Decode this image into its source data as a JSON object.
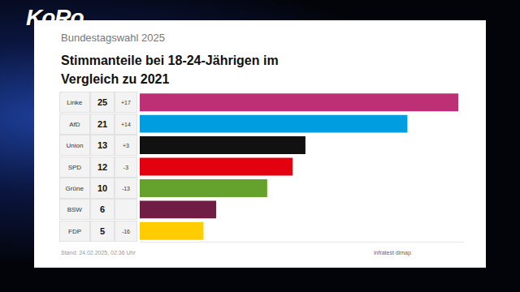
{
  "logo": "KoRo",
  "chart_data": {
    "type": "bar",
    "orientation": "horizontal",
    "subtitle": "Bundestagswahl 2025",
    "title": "Stimmanteile bei 18-24-Jährigen im Vergleich zu 2021",
    "categories": [
      "Linke",
      "AfD",
      "Union",
      "SPD",
      "Grüne",
      "BSW",
      "FDP"
    ],
    "values": [
      25,
      21,
      13,
      12,
      10,
      6,
      5
    ],
    "changes": [
      17,
      14,
      3,
      -3,
      -13,
      null,
      -16
    ],
    "change_labels": [
      "+17",
      "+14",
      "+3",
      "-3",
      "-13",
      null,
      "-16"
    ],
    "colors": [
      "#be3075",
      "#009ee0",
      "#111111",
      "#e3000f",
      "#64a12d",
      "#6f1d45",
      "#ffcc00"
    ],
    "xlim": [
      0,
      25.5
    ],
    "data_labels": true,
    "grid": false,
    "note": "Stand: 24.02.2025, 02:36 Uhr",
    "source": "infratest dimap"
  }
}
